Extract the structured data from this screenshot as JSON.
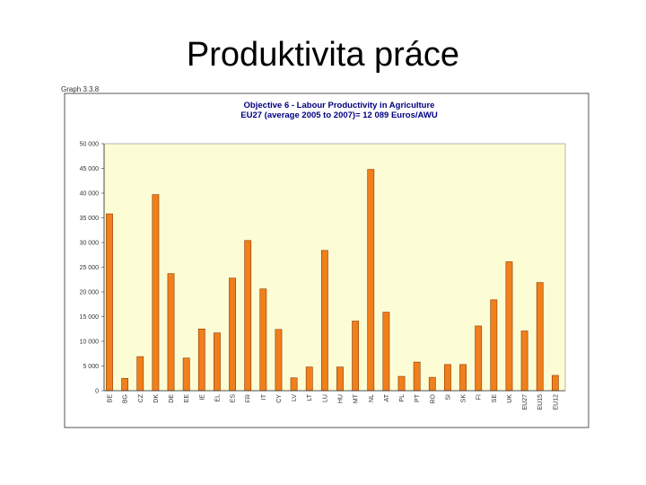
{
  "slide": {
    "title": "Produktivita práce",
    "graph_ref": "Graph 3.3.8"
  },
  "chart_data": {
    "type": "bar",
    "title": "Objective 6 - Labour Productivity in Agriculture",
    "subtitle": "EU27 (average 2005 to 2007)= 12 089 Euros/AWU",
    "xlabel": "",
    "ylabel": "",
    "ylim": [
      0,
      50000
    ],
    "yticks": [
      0,
      5000,
      10000,
      15000,
      20000,
      25000,
      30000,
      35000,
      40000,
      45000,
      50000
    ],
    "ytick_labels": [
      "0",
      "5 000",
      "10 000",
      "15 000",
      "20 000",
      "25 000",
      "30 000",
      "35 000",
      "40 000",
      "45 000",
      "50 000"
    ],
    "grid": false,
    "legend": "none",
    "categories": [
      "BE",
      "BG",
      "CZ",
      "DK",
      "DE",
      "EE",
      "IE",
      "EL",
      "ES",
      "FR",
      "IT",
      "CY",
      "LV",
      "LT",
      "LU",
      "HU",
      "MT",
      "NL",
      "AT",
      "PL",
      "PT",
      "RO",
      "SI",
      "SK",
      "FI",
      "SE",
      "UK",
      "EU27",
      "EU15",
      "EU12"
    ],
    "values": [
      35800,
      2500,
      6900,
      39700,
      23700,
      6600,
      12500,
      11700,
      22800,
      30400,
      20600,
      12400,
      2600,
      4800,
      28400,
      4800,
      14100,
      44800,
      15900,
      2900,
      5800,
      2700,
      5300,
      5300,
      13100,
      18400,
      26100,
      12089,
      21900,
      3100
    ],
    "colors": {
      "bar_fill": "#f07f1c",
      "bar_stroke": "#8a3a00",
      "plot_bg": "#fdfdd5",
      "frame": "#555555",
      "title_text": "#000080"
    }
  }
}
